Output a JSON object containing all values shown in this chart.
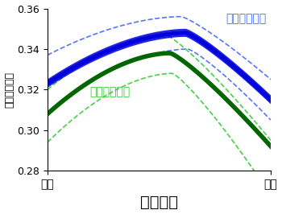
{
  "title": "",
  "xlabel": "空間位置",
  "ylabel": "神経組織密度",
  "xlim": [
    0,
    1
  ],
  "ylim": [
    0.28,
    0.36
  ],
  "yticks": [
    0.28,
    0.3,
    0.32,
    0.34,
    0.36
  ],
  "x_left_label": "背側",
  "x_right_label": "腹側",
  "high_label": "立体視力高群",
  "low_label": "立体視力低群",
  "high_color": "#0000DD",
  "low_color": "#006600",
  "high_dash_color": "#4466FF",
  "low_dash_color": "#33CC33",
  "n_points": 80
}
